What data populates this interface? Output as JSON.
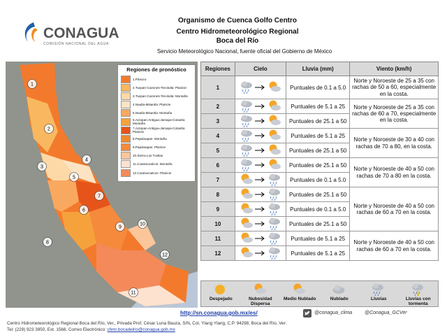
{
  "logo": {
    "name": "CONAGUA",
    "subtitle": "COMISIÓN NACIONAL DEL AGUA"
  },
  "header": {
    "line1": "Organismo de Cuenca Golfo Centro",
    "line2": "Centro Hidrometeorológico Regional",
    "line3": "Boca del Río",
    "line4": "Servicio Meteorológico Nacional, fuente oficial del Gobierno de México"
  },
  "map": {
    "legend_title": "Regiones de pronóstico",
    "legend": [
      {
        "label": "1.Pánuco",
        "color": "#f37a2c"
      },
      {
        "label": "2.Tuxpan-Cazones-Tecolutla: Planicie",
        "color": "#f9b85f"
      },
      {
        "label": "3.Tuxpan-Cazones-Tecolutla: Montaña",
        "color": "#fdd9a8"
      },
      {
        "label": "4.Nautla-Misantla: Planicie",
        "color": "#fbe3c4"
      },
      {
        "label": "5.Nautla-Misantla: Montaña",
        "color": "#f9a860"
      },
      {
        "label": "6.Actopan-Antigua-Jamapa-Cotaxtla: Montaña",
        "color": "#f6a23c"
      },
      {
        "label": "7.Actopan-Antigua-Jamapa-Cotaxtla: Planicie",
        "color": "#e6541a"
      },
      {
        "label": "8.Papaloapan: Montaña",
        "color": "#ee8a2e"
      },
      {
        "label": "9.Papaloapan: Planicie",
        "color": "#f58a3c"
      },
      {
        "label": "10.Sierra Los Tuxtlas",
        "color": "#fbc69a"
      },
      {
        "label": "11.Coatzacoalcos: Montaña",
        "color": "#fde2cf"
      },
      {
        "label": "12.Coatzacoalcos: Planicie",
        "color": "#f48a5a"
      }
    ]
  },
  "table": {
    "headers": [
      "Regiones",
      "Cielo",
      "Lluvia (mm)",
      "Viento (km/h)"
    ],
    "rows": [
      [
        "1",
        "Puntuales de 0.1 a 5.0"
      ],
      [
        "2",
        "Puntuales de 5.1 a 25"
      ],
      [
        "3",
        "Puntuales de 25.1 a 50"
      ],
      [
        "4",
        "Puntuales de 5.1 a 25"
      ],
      [
        "5",
        "Puntuales de 25.1 a 50"
      ],
      [
        "6",
        "Puntuales de 25.1 a 50"
      ],
      [
        "7",
        "Puntuales de 0.1 a 5.0"
      ],
      [
        "8",
        "Puntuales de 25.1 a 50"
      ],
      [
        "9",
        "Puntuales de 0.1 a 5.0"
      ],
      [
        "10",
        "Puntuales de 25.1 a 50"
      ],
      [
        "11",
        "Puntuales de 5.1 a 25"
      ],
      [
        "12",
        "Puntuales de 5.1 a 25"
      ]
    ],
    "wind": [
      "Norte y Noroeste de 25 a 35 con rachas de 50 a 60, especialmente en la costa.",
      "Norte y Noroeste de 25 a 35 con rachas de 60 a 70, especialmente en la costa.",
      "Norte y Noroeste de 30 a 40 con rachas de 70 a 80, en la costa.",
      "Norte y Noroeste de 40 a 50 con rachas de 70 a 80 en la costa.",
      "Norte y Noroeste de 40 a 50 con rachas de 60 a 70 en la costa.",
      "Norte y Noroeste de 40 a 50 con rachas de 60 a 70 en la costa."
    ]
  },
  "sky_legend": [
    "Despejado",
    "Nubosidad Dispersa",
    "Medio Nublado",
    "Nublado",
    "Lluvias",
    "Lluvias con tormenta"
  ],
  "footer": {
    "url": "http://sn.conagua.gob.mx/es/",
    "twitter1": "@conagua_clima",
    "twitter2": "@Conagua_GCVer",
    "address": "Centro Hidrometeorológico Regional Boca del Río, Ver., Privada Prof. César Luna Bauza, S/N, Col. Ylang Ylang, C.P. 94298, Boca del Río, Ver.",
    "contact": "Tel: (229) 923 3950, Ext. 1568, Correo Electrónico:",
    "email": "chmr.bocadelrio@conagua.gob.mx"
  }
}
